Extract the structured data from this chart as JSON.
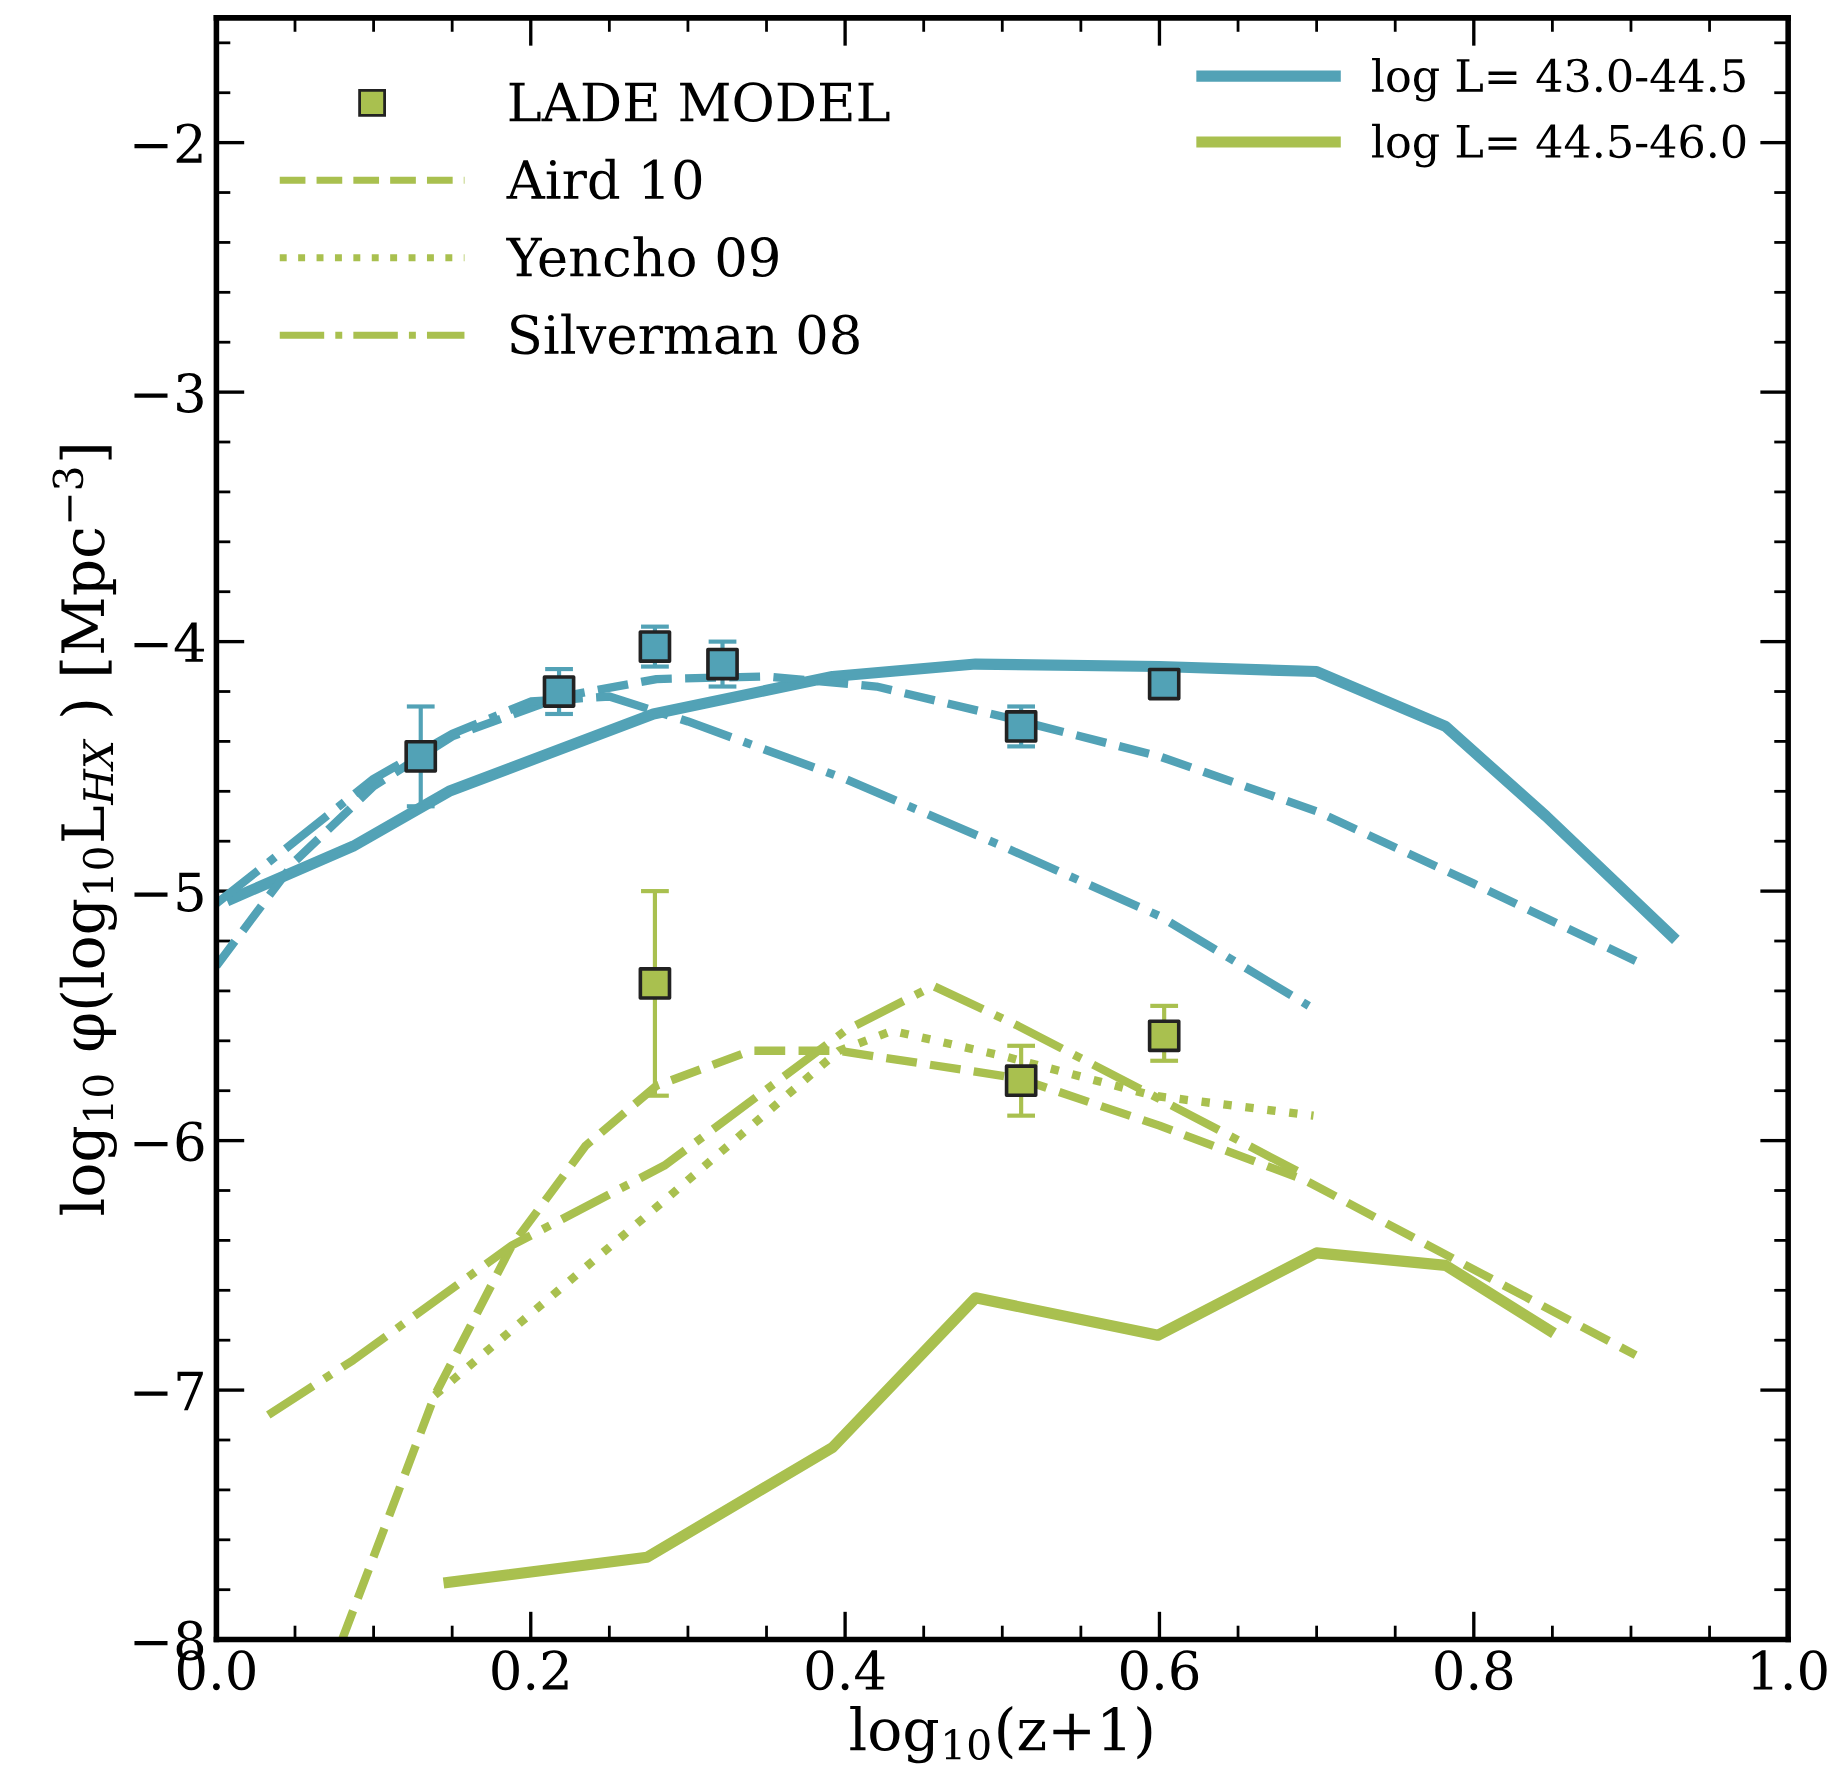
{
  "chart_data": {
    "type": "line",
    "xlabel": "log$_{10}$(z+1)",
    "ylabel": "log$_{10}$ φ(log$_{10}$L$_{HX}$ ) [Mpc$^{−3}$]",
    "xlim": [
      0.0,
      1.0
    ],
    "xticks": [
      {
        "value": 0.0,
        "label": "0.0"
      },
      0.2,
      0.4,
      0.6,
      0.8,
      {
        "value": 1.0,
        "label": "1.0"
      }
    ],
    "ylim": [
      -8,
      -1.5
    ],
    "yticks": [
      -8,
      -7,
      -6,
      -5,
      -4,
      -3,
      -2
    ],
    "grid": false,
    "legend": "top",
    "series": [
      {
        "name": "LADE MODEL",
        "type": "scatter",
        "marker": "square",
        "color": "#a9c04f",
        "x": [
          0.279,
          0.512,
          0.603
        ],
        "values": [
          -5.37,
          -5.76,
          -5.58
        ],
        "errors": [
          [
            -5.82,
            -5.0
          ],
          [
            -5.9,
            -5.62
          ],
          [
            -5.68,
            -5.46
          ]
        ]
      },
      {
        "name": "Aird 10",
        "line_style": "dashed",
        "color": "#a9c04f",
        "x": [
          0.08,
          0.139,
          0.188,
          0.235,
          0.28,
          0.34,
          0.396,
          0.51,
          0.6,
          0.693,
          0.903
        ],
        "values": [
          -8.0,
          -7.02,
          -6.42,
          -6.02,
          -5.78,
          -5.64,
          -5.64,
          -5.75,
          -5.94,
          -6.16,
          -6.86
        ]
      },
      {
        "name": "Yencho 09",
        "line_style": "dotted",
        "color": "#a9c04f",
        "x": [
          0.139,
          0.285,
          0.396,
          0.43,
          0.5,
          0.596,
          0.698
        ],
        "values": [
          -7.02,
          -6.24,
          -5.64,
          -5.56,
          -5.66,
          -5.82,
          -5.9
        ]
      },
      {
        "name": "Silverman 08",
        "line_style": "dashdot",
        "color": "#a9c04f",
        "x": [
          0.033,
          0.087,
          0.188,
          0.285,
          0.4,
          0.456,
          0.51,
          0.596,
          0.693
        ],
        "values": [
          -7.1,
          -6.88,
          -6.42,
          -6.1,
          -5.56,
          -5.38,
          -5.54,
          -5.82,
          -6.14
        ]
      },
      {
        "name": "log L= 43.0-44.5",
        "line_style": "solid",
        "color": "#52a2b6",
        "x": [
          0.01,
          0.087,
          0.148,
          0.278,
          0.392,
          0.483,
          0.6,
          0.7,
          0.782,
          0.846,
          0.926
        ],
        "values": [
          -5.03,
          -4.82,
          -4.6,
          -4.29,
          -4.14,
          -4.09,
          -4.1,
          -4.12,
          -4.34,
          -4.7,
          -5.18
        ]
      },
      {
        "name": "log L= 44.5-46.0",
        "line_style": "solid",
        "color": "#a9c04f",
        "x": [
          0.148,
          0.274,
          0.392,
          0.483,
          0.599,
          0.7,
          0.782,
          0.848
        ],
        "values": [
          -7.77,
          -7.67,
          -7.23,
          -6.63,
          -6.78,
          -6.45,
          -6.5,
          -6.76
        ]
      },
      {
        "type": "scatter",
        "marker": "square",
        "color": "#52a2b6",
        "x": [
          0.13,
          0.218,
          0.279,
          0.322,
          0.512,
          0.603
        ],
        "values": [
          -4.46,
          -4.2,
          -4.02,
          -4.09,
          -4.34,
          -4.17
        ],
        "errors": [
          [
            -4.66,
            -4.26
          ],
          [
            -4.29,
            -4.11
          ],
          [
            -4.1,
            -3.94
          ],
          [
            -4.18,
            -4.0
          ],
          [
            -4.42,
            -4.26
          ],
          null
        ]
      },
      {
        "line_style": "dashed",
        "color": "#52a2b6",
        "x": [
          0.0,
          0.05,
          0.1,
          0.15,
          0.22,
          0.28,
          0.35,
          0.42,
          0.5,
          0.6,
          0.7,
          0.8,
          0.903
        ],
        "values": [
          -5.3,
          -4.88,
          -4.58,
          -4.38,
          -4.22,
          -4.15,
          -4.14,
          -4.18,
          -4.3,
          -4.46,
          -4.68,
          -4.97,
          -5.28
        ]
      },
      {
        "line_style": "dashdot",
        "color": "#52a2b6",
        "x": [
          0.0,
          0.05,
          0.1,
          0.15,
          0.2,
          0.25,
          0.3,
          0.4,
          0.5,
          0.6,
          0.695
        ],
        "values": [
          -5.05,
          -4.8,
          -4.55,
          -4.37,
          -4.24,
          -4.22,
          -4.32,
          -4.55,
          -4.82,
          -5.1,
          -5.46
        ]
      }
    ]
  }
}
